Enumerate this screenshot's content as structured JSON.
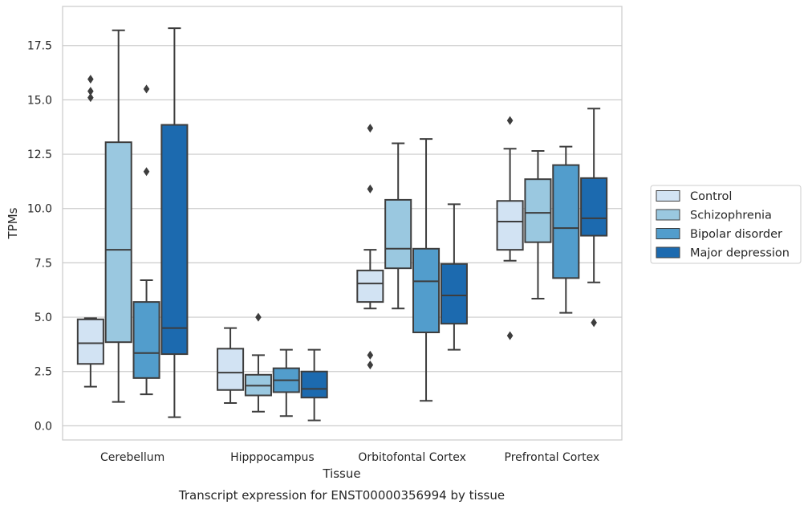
{
  "chart_data": {
    "type": "box",
    "title": "",
    "xlabel": "Tissue",
    "ylabel": "TPMs",
    "caption": "Transcript expression for ENST00000356994 by tissue",
    "categories": [
      "Cerebellum",
      "Hipppocampus",
      "Orbitofontal Cortex",
      "Prefrontal Cortex"
    ],
    "ylim": [
      -0.65,
      19.3
    ],
    "yticks": [
      "0.0",
      "2.5",
      "5.0",
      "7.5",
      "10.0",
      "12.5",
      "15.0",
      "17.5"
    ],
    "grid": true,
    "legend_position": "right",
    "series": [
      {
        "name": "Control",
        "color": "#d2e3f3",
        "boxes": [
          {
            "whislo": 1.8,
            "q1": 2.85,
            "med": 3.8,
            "q3": 4.9,
            "whishi": 4.95,
            "fliers": [
              15.1,
              15.4,
              15.95
            ]
          },
          {
            "whislo": 1.05,
            "q1": 1.65,
            "med": 2.45,
            "q3": 3.55,
            "whishi": 4.5,
            "fliers": []
          },
          {
            "whislo": 5.4,
            "q1": 5.7,
            "med": 6.55,
            "q3": 7.15,
            "whishi": 8.1,
            "fliers": [
              2.8,
              3.25,
              10.9,
              13.7
            ]
          },
          {
            "whislo": 7.6,
            "q1": 8.1,
            "med": 9.4,
            "q3": 10.35,
            "whishi": 12.75,
            "fliers": [
              4.15,
              14.05
            ]
          }
        ]
      },
      {
        "name": "Schizophrenia",
        "color": "#9ac8e0",
        "boxes": [
          {
            "whislo": 1.1,
            "q1": 3.85,
            "med": 8.1,
            "q3": 13.05,
            "whishi": 18.2,
            "fliers": []
          },
          {
            "whislo": 0.65,
            "q1": 1.4,
            "med": 1.85,
            "q3": 2.35,
            "whishi": 3.25,
            "fliers": [
              5.0
            ]
          },
          {
            "whislo": 5.4,
            "q1": 7.25,
            "med": 8.15,
            "q3": 10.4,
            "whishi": 13.0,
            "fliers": []
          },
          {
            "whislo": 5.85,
            "q1": 8.45,
            "med": 9.8,
            "q3": 11.35,
            "whishi": 12.65,
            "fliers": []
          }
        ]
      },
      {
        "name": "Bipolar disorder",
        "color": "#529dcc",
        "boxes": [
          {
            "whislo": 1.45,
            "q1": 2.2,
            "med": 3.35,
            "q3": 5.7,
            "whishi": 6.7,
            "fliers": [
              11.7,
              15.5
            ]
          },
          {
            "whislo": 0.45,
            "q1": 1.55,
            "med": 2.1,
            "q3": 2.65,
            "whishi": 3.5,
            "fliers": []
          },
          {
            "whislo": 1.15,
            "q1": 4.3,
            "med": 6.65,
            "q3": 8.15,
            "whishi": 13.2,
            "fliers": []
          },
          {
            "whislo": 5.2,
            "q1": 6.8,
            "med": 9.1,
            "q3": 12.0,
            "whishi": 12.85,
            "fliers": []
          }
        ]
      },
      {
        "name": "Major depression",
        "color": "#1c6aaf",
        "boxes": [
          {
            "whislo": 0.4,
            "q1": 3.3,
            "med": 4.5,
            "q3": 13.85,
            "whishi": 18.3,
            "fliers": []
          },
          {
            "whislo": 0.25,
            "q1": 1.3,
            "med": 1.7,
            "q3": 2.5,
            "whishi": 3.5,
            "fliers": []
          },
          {
            "whislo": 3.5,
            "q1": 4.7,
            "med": 6.0,
            "q3": 7.45,
            "whishi": 10.2,
            "fliers": []
          },
          {
            "whislo": 6.6,
            "q1": 8.75,
            "med": 9.55,
            "q3": 11.4,
            "whishi": 14.6,
            "fliers": [
              4.75
            ]
          }
        ]
      }
    ]
  }
}
